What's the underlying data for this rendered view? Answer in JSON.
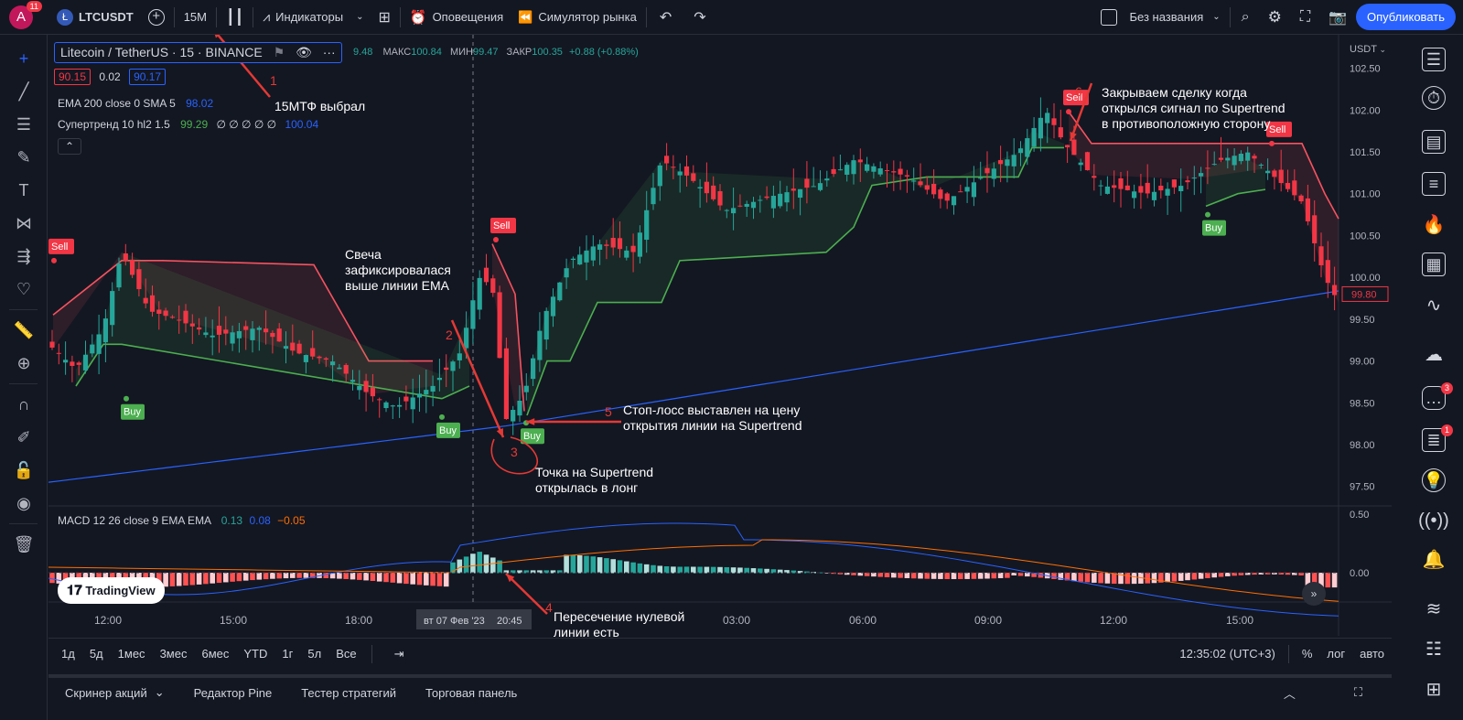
{
  "topbar": {
    "avatar_letter": "A",
    "avatar_badge": "11",
    "symbol_icon": "Ł",
    "symbol": "LTCUSDT",
    "interval": "15M",
    "indicators": "Индикаторы",
    "alerts": "Оповещения",
    "replay": "Симулятор рынка",
    "layout_name": "Без названия",
    "publish": "Опубликовать"
  },
  "legend": {
    "title": "Litecoin / TetherUS · 15 · BINANCE",
    "ohlc_partial": "9.48",
    "high_label": "МАКС",
    "high": "100.84",
    "low_label": "МИН",
    "low": "99.47",
    "close_label": "ЗАКР",
    "close": "100.35",
    "change": "+0.88 (+0.88%)",
    "bid": "90.15",
    "spread": "0.02",
    "ask": "90.17",
    "ema_label": "EMA 200 close 0 SMA 5",
    "ema_value": "98.02",
    "st_label": "Супертренд 10 hl2 1.5",
    "st_value1": "99.29",
    "st_empty": "∅ ∅ ∅ ∅ ∅",
    "st_value2": "100.04",
    "macd_label": "MACD 12 26 close 9 EMA EMA",
    "macd_v1": "0.13",
    "macd_v2": "0.08",
    "macd_v3": "−0.05",
    "currency": "USDT"
  },
  "chart_data": {
    "type": "candlestick",
    "price_ticks": [
      "102.50",
      "102.00",
      "101.50",
      "101.00",
      "100.50",
      "100.00",
      "99.50",
      "99.00",
      "98.50",
      "98.00",
      "97.50"
    ],
    "current_price": "99.80",
    "macd_ticks": [
      "0.50",
      "0.00"
    ],
    "time_ticks": [
      "12:00",
      "15:00",
      "18:00",
      "03:00",
      "06:00",
      "09:00",
      "12:00",
      "15:00"
    ],
    "crosshair_date": "вт 07 Фев '23",
    "crosshair_time": "20:45",
    "signals": [
      {
        "label": "Sell",
        "price": 100.2
      },
      {
        "label": "Buy",
        "price": 98.55
      },
      {
        "label": "Buy",
        "price": 98.33
      },
      {
        "label": "Sell",
        "price": 100.45
      },
      {
        "label": "Buy",
        "price": 98.26
      },
      {
        "label": "Sell",
        "price": 101.98
      },
      {
        "label": "Sell",
        "price": 101.6
      },
      {
        "label": "Buy",
        "price": 100.75
      }
    ]
  },
  "watermark": "TradingView",
  "bottombar": {
    "ranges": [
      "1д",
      "5д",
      "1мес",
      "3мес",
      "6мес",
      "YTD",
      "1г",
      "5л",
      "Все"
    ],
    "clock": "12:35:02 (UTC+3)",
    "percent": "%",
    "log": "лог",
    "auto": "авто"
  },
  "panelbar": {
    "tabs": [
      "Скринер акций",
      "Редактор Pine",
      "Тестер стратегий",
      "Торговая панель"
    ]
  },
  "annotations": {
    "a1_num": "1",
    "a1_text": "15МТФ выбрал",
    "a2_num": "2",
    "a2_text": "Свеча\nзафиксировалася\nвыше линии EMA",
    "a3_num": "3",
    "a3_text": "Точка на Supertrend\nоткрылась в лонг",
    "a4_num": "4",
    "a4_text": "Пересечение нулевой\nлинии есть",
    "a5_num": "5",
    "a5_text": "Стоп-лосс выставлен на цену\nоткрытия линии на Supertrend",
    "a6_num": "6",
    "a6_text": "Закрываем сделку когда\nоткрылся сигнал по Supertrend\nв противоположную сторону"
  },
  "rightbar": {
    "badge_a": "3",
    "badge_b": "1"
  },
  "colors": {
    "bull": "#26a69a",
    "bear": "#f23645",
    "ema": "#2962ff",
    "st_up": "#4caf50",
    "st_dn": "#f7525f",
    "macd": "#2962ff",
    "signal": "#ff6d00",
    "annotation": "#e53935"
  }
}
